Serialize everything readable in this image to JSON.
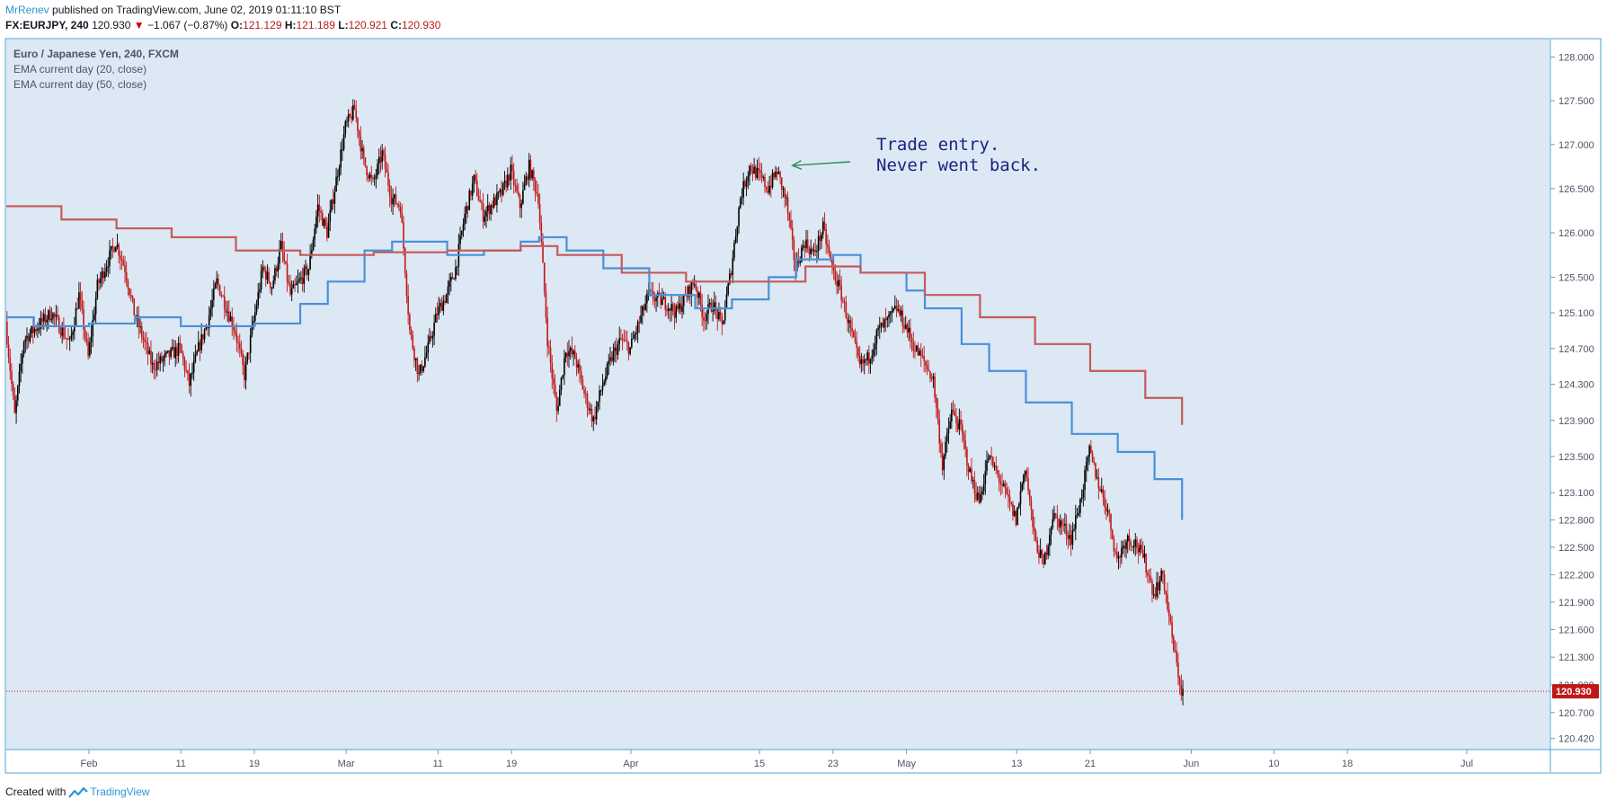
{
  "header": {
    "username": "MrRenev",
    "published_text": "published on TradingView.com, June 02, 2019 01:11:10 BST",
    "symbol": "FX:EURJPY, 240",
    "last": "120.930",
    "change": "−1.067 (−0.87%)",
    "open_label": "O:",
    "open": "121.129",
    "high_label": "H:",
    "high": "121.189",
    "low_label": "L:",
    "low": "120.921",
    "close_label": "C:",
    "close": "120.930"
  },
  "legend": {
    "title": "Euro / Japanese Yen, 240, FXCM",
    "ema20": "EMA current day (20, close)",
    "ema50": "EMA current day (50, close)"
  },
  "annotation": {
    "line1": "Trade entry.",
    "line2": "Never went back."
  },
  "footer": {
    "created_with": "Created with",
    "brand": "TradingView"
  },
  "colors": {
    "background": "#dce8f4",
    "bull": "#000000",
    "bear": "#c01818",
    "ema20": "#4a90d9",
    "ema50": "#c45a5a",
    "price_line": "#c01818",
    "arrow": "#2e8b57"
  },
  "chart_data": {
    "type": "candlestick",
    "title": "Euro / Japanese Yen, 240, FXCM",
    "x_range": [
      "2019-01-23",
      "2019-07-10"
    ],
    "y_range": [
      120.3,
      128.2
    ],
    "y_scale": "log",
    "price_ticks": [
      "128.000",
      "127.500",
      "127.000",
      "126.500",
      "126.000",
      "125.500",
      "125.100",
      "124.700",
      "124.300",
      "123.900",
      "123.500",
      "123.100",
      "122.800",
      "122.500",
      "122.200",
      "121.900",
      "121.600",
      "121.300",
      "121.000",
      "120.700",
      "120.420"
    ],
    "x_ticks": [
      {
        "label": "Feb",
        "date": "2019-02-01"
      },
      {
        "label": "11",
        "date": "2019-02-11"
      },
      {
        "label": "19",
        "date": "2019-02-19"
      },
      {
        "label": "Mar",
        "date": "2019-03-01"
      },
      {
        "label": "11",
        "date": "2019-03-11"
      },
      {
        "label": "19",
        "date": "2019-03-19"
      },
      {
        "label": "Apr",
        "date": "2019-04-01"
      },
      {
        "label": "15",
        "date": "2019-04-15"
      },
      {
        "label": "23",
        "date": "2019-04-23"
      },
      {
        "label": "May",
        "date": "2019-05-01"
      },
      {
        "label": "13",
        "date": "2019-05-13"
      },
      {
        "label": "21",
        "date": "2019-05-21"
      },
      {
        "label": "Jun",
        "date": "2019-06-01"
      },
      {
        "label": "10",
        "date": "2019-06-10"
      },
      {
        "label": "18",
        "date": "2019-06-18"
      },
      {
        "label": "Jul",
        "date": "2019-07-01"
      }
    ],
    "last_price": "120.930",
    "close_path": [
      [
        "2019-01-23",
        125.0
      ],
      [
        "2019-01-24",
        123.95
      ],
      [
        "2019-01-25",
        124.8
      ],
      [
        "2019-01-28",
        125.1
      ],
      [
        "2019-01-30",
        124.75
      ],
      [
        "2019-01-31",
        125.3
      ],
      [
        "2019-02-01",
        124.6
      ],
      [
        "2019-02-02",
        125.4
      ],
      [
        "2019-02-04",
        125.9
      ],
      [
        "2019-02-05",
        125.6
      ],
      [
        "2019-02-06",
        125.1
      ],
      [
        "2019-02-07",
        124.8
      ],
      [
        "2019-02-08",
        124.5
      ],
      [
        "2019-02-11",
        124.7
      ],
      [
        "2019-02-12",
        124.3
      ],
      [
        "2019-02-13",
        124.7
      ],
      [
        "2019-02-14",
        125.0
      ],
      [
        "2019-02-15",
        125.45
      ],
      [
        "2019-02-17",
        124.9
      ],
      [
        "2019-02-18",
        124.4
      ],
      [
        "2019-02-19",
        125.0
      ],
      [
        "2019-02-20",
        125.6
      ],
      [
        "2019-02-21",
        125.4
      ],
      [
        "2019-02-22",
        125.85
      ],
      [
        "2019-02-23",
        125.3
      ],
      [
        "2019-02-25",
        125.6
      ],
      [
        "2019-02-26",
        126.3
      ],
      [
        "2019-02-27",
        126.0
      ],
      [
        "2019-02-28",
        126.6
      ],
      [
        "2019-03-01",
        127.2
      ],
      [
        "2019-03-02",
        127.4
      ],
      [
        "2019-03-03",
        126.8
      ],
      [
        "2019-03-04",
        126.55
      ],
      [
        "2019-03-05",
        126.9
      ],
      [
        "2019-03-06",
        126.4
      ],
      [
        "2019-03-07",
        126.3
      ],
      [
        "2019-03-08",
        124.9
      ],
      [
        "2019-03-09",
        124.4
      ],
      [
        "2019-03-10",
        124.7
      ],
      [
        "2019-03-11",
        125.1
      ],
      [
        "2019-03-12",
        125.3
      ],
      [
        "2019-03-13",
        125.6
      ],
      [
        "2019-03-14",
        126.2
      ],
      [
        "2019-03-15",
        126.6
      ],
      [
        "2019-03-16",
        126.2
      ],
      [
        "2019-03-18",
        126.45
      ],
      [
        "2019-03-19",
        126.7
      ],
      [
        "2019-03-20",
        126.3
      ],
      [
        "2019-03-21",
        126.75
      ],
      [
        "2019-03-22",
        126.4
      ],
      [
        "2019-03-23",
        124.8
      ],
      [
        "2019-03-24",
        124.0
      ],
      [
        "2019-03-25",
        124.7
      ],
      [
        "2019-03-26",
        124.6
      ],
      [
        "2019-03-27",
        124.2
      ],
      [
        "2019-03-28",
        123.9
      ],
      [
        "2019-03-29",
        124.3
      ],
      [
        "2019-03-30",
        124.6
      ],
      [
        "2019-03-31",
        124.8
      ],
      [
        "2019-04-01",
        124.7
      ],
      [
        "2019-04-03",
        125.3
      ],
      [
        "2019-04-05",
        125.2
      ],
      [
        "2019-04-06",
        125.1
      ],
      [
        "2019-04-08",
        125.45
      ],
      [
        "2019-04-09",
        125.05
      ],
      [
        "2019-04-10",
        125.2
      ],
      [
        "2019-04-11",
        124.95
      ],
      [
        "2019-04-12",
        125.6
      ],
      [
        "2019-04-13",
        126.4
      ],
      [
        "2019-04-14",
        126.75
      ],
      [
        "2019-04-15",
        126.65
      ],
      [
        "2019-04-16",
        126.5
      ],
      [
        "2019-04-17",
        126.7
      ],
      [
        "2019-04-18",
        126.35
      ],
      [
        "2019-04-19",
        125.6
      ],
      [
        "2019-04-20",
        125.9
      ],
      [
        "2019-04-21",
        125.75
      ],
      [
        "2019-04-22",
        126.05
      ],
      [
        "2019-04-23",
        125.6
      ],
      [
        "2019-04-24",
        125.3
      ],
      [
        "2019-04-25",
        124.9
      ],
      [
        "2019-04-26",
        124.5
      ],
      [
        "2019-04-27",
        124.6
      ],
      [
        "2019-04-28",
        124.9
      ],
      [
        "2019-04-29",
        125.0
      ],
      [
        "2019-04-30",
        125.15
      ],
      [
        "2019-05-01",
        124.95
      ],
      [
        "2019-05-02",
        124.7
      ],
      [
        "2019-05-03",
        124.55
      ],
      [
        "2019-05-04",
        124.35
      ],
      [
        "2019-05-05",
        123.4
      ],
      [
        "2019-05-06",
        124.0
      ],
      [
        "2019-05-07",
        123.8
      ],
      [
        "2019-05-08",
        123.3
      ],
      [
        "2019-05-09",
        123.0
      ],
      [
        "2019-05-10",
        123.5
      ],
      [
        "2019-05-11",
        123.3
      ],
      [
        "2019-05-12",
        123.05
      ],
      [
        "2019-05-13",
        122.8
      ],
      [
        "2019-05-14",
        123.4
      ],
      [
        "2019-05-15",
        122.6
      ],
      [
        "2019-05-16",
        122.3
      ],
      [
        "2019-05-17",
        122.85
      ],
      [
        "2019-05-18",
        122.75
      ],
      [
        "2019-05-19",
        122.6
      ],
      [
        "2019-05-20",
        123.0
      ],
      [
        "2019-05-21",
        123.55
      ],
      [
        "2019-05-22",
        123.2
      ],
      [
        "2019-05-23",
        122.9
      ],
      [
        "2019-05-24",
        122.35
      ],
      [
        "2019-05-25",
        122.6
      ],
      [
        "2019-05-26",
        122.55
      ],
      [
        "2019-05-27",
        122.35
      ],
      [
        "2019-05-28",
        122.0
      ],
      [
        "2019-05-29",
        122.2
      ],
      [
        "2019-05-30",
        121.5
      ],
      [
        "2019-05-31",
        120.93
      ]
    ],
    "series": [
      {
        "name": "EMA current day (20, close)",
        "values": [
          [
            "2019-01-23",
            125.05
          ],
          [
            "2019-01-26",
            124.95
          ],
          [
            "2019-02-01",
            124.98
          ],
          [
            "2019-02-06",
            125.05
          ],
          [
            "2019-02-11",
            124.95
          ],
          [
            "2019-02-19",
            124.98
          ],
          [
            "2019-02-24",
            125.2
          ],
          [
            "2019-02-27",
            125.45
          ],
          [
            "2019-03-03",
            125.8
          ],
          [
            "2019-03-06",
            125.9
          ],
          [
            "2019-03-12",
            125.75
          ],
          [
            "2019-03-16",
            125.8
          ],
          [
            "2019-03-20",
            125.9
          ],
          [
            "2019-03-22",
            125.95
          ],
          [
            "2019-03-25",
            125.8
          ],
          [
            "2019-03-29",
            125.6
          ],
          [
            "2019-04-03",
            125.3
          ],
          [
            "2019-04-08",
            125.15
          ],
          [
            "2019-04-12",
            125.25
          ],
          [
            "2019-04-16",
            125.5
          ],
          [
            "2019-04-19",
            125.7
          ],
          [
            "2019-04-23",
            125.75
          ],
          [
            "2019-04-26",
            125.55
          ],
          [
            "2019-05-01",
            125.35
          ],
          [
            "2019-05-03",
            125.15
          ],
          [
            "2019-05-07",
            124.75
          ],
          [
            "2019-05-10",
            124.45
          ],
          [
            "2019-05-14",
            124.1
          ],
          [
            "2019-05-19",
            123.75
          ],
          [
            "2019-05-24",
            123.55
          ],
          [
            "2019-05-28",
            123.25
          ],
          [
            "2019-05-31",
            123.05
          ],
          [
            "2019-05-31",
            122.8
          ]
        ]
      },
      {
        "name": "EMA current day (50, close)",
        "values": [
          [
            "2019-01-23",
            126.3
          ],
          [
            "2019-01-29",
            126.15
          ],
          [
            "2019-02-04",
            126.05
          ],
          [
            "2019-02-10",
            125.95
          ],
          [
            "2019-02-17",
            125.8
          ],
          [
            "2019-02-24",
            125.75
          ],
          [
            "2019-03-04",
            125.78
          ],
          [
            "2019-03-12",
            125.8
          ],
          [
            "2019-03-20",
            125.85
          ],
          [
            "2019-03-24",
            125.75
          ],
          [
            "2019-03-31",
            125.55
          ],
          [
            "2019-04-07",
            125.45
          ],
          [
            "2019-04-14",
            125.45
          ],
          [
            "2019-04-20",
            125.62
          ],
          [
            "2019-04-26",
            125.55
          ],
          [
            "2019-05-03",
            125.3
          ],
          [
            "2019-05-09",
            125.05
          ],
          [
            "2019-05-15",
            124.75
          ],
          [
            "2019-05-21",
            124.45
          ],
          [
            "2019-05-27",
            124.15
          ],
          [
            "2019-05-31",
            123.95
          ],
          [
            "2019-05-31",
            123.85
          ]
        ]
      }
    ],
    "annotation": {
      "text": "Trade entry. Never went back.",
      "arrow_to": [
        "2019-04-18",
        126.7
      ]
    }
  }
}
